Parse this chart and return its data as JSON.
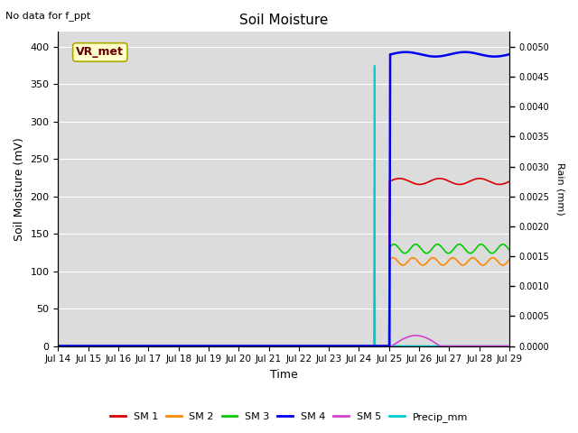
{
  "title": "Soil Moisture",
  "top_left_text": "No data for f_ppt",
  "annotation_text": "VR_met",
  "xlabel": "Time",
  "ylabel_left": "Soil Moisture (mV)",
  "ylabel_right": "Rain (mm)",
  "ylim_left": [
    0,
    420
  ],
  "ylim_right": [
    0,
    0.00525
  ],
  "x_tick_labels": [
    "Jul 14",
    "Jul 15",
    "Jul 16",
    "Jul 17",
    "Jul 18",
    "Jul 19",
    "Jul 20",
    "Jul 21",
    "Jul 22",
    "Jul 23",
    "Jul 24",
    "Jul 25",
    "Jul 26",
    "Jul 27",
    "Jul 28",
    "Jul 29"
  ],
  "background_color": "#dcdcdc",
  "grid_color": "#ffffff",
  "sm1_color": "#dd0000",
  "sm2_color": "#ff8800",
  "sm3_color": "#00cc00",
  "sm4_color": "#0000ee",
  "sm5_color": "#cc44cc",
  "precip_color": "#00cccc",
  "sm1_label": "SM 1",
  "sm2_label": "SM 2",
  "sm3_label": "SM 3",
  "sm4_label": "SM 4",
  "sm5_label": "SM 5",
  "precip_label": "Precip_mm",
  "right_yticks": [
    0.0,
    0.0005,
    0.001,
    0.0015,
    0.002,
    0.0025,
    0.003,
    0.0035,
    0.004,
    0.0045,
    0.005
  ]
}
